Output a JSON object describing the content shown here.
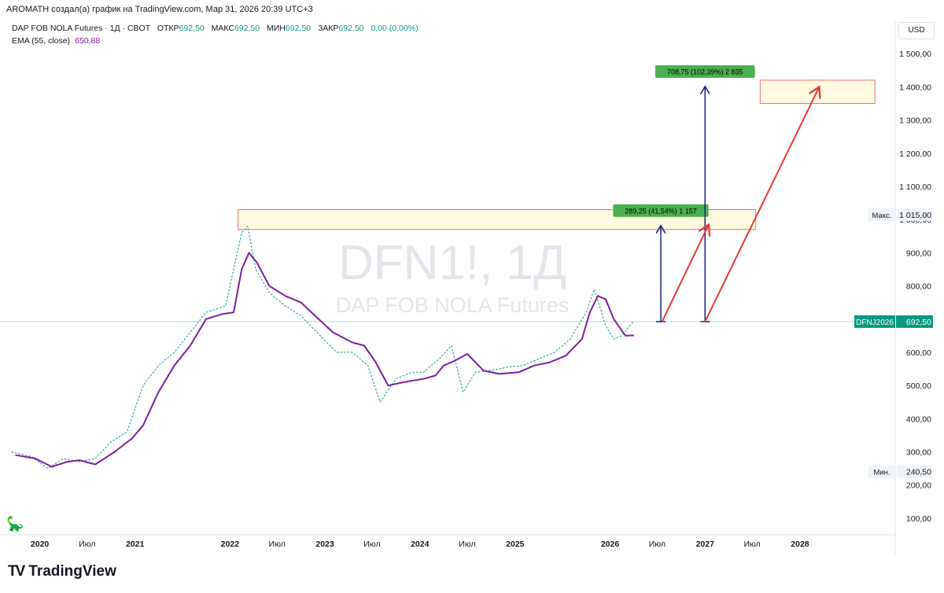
{
  "header": {
    "author_line": "AROMATH создал(а) график на TradingView.com, Мар 31, 2026 20:39 UTC+3",
    "symbol_line": "DAP FOB NOLA Futures · 1Д · CBOT",
    "ohlc": [
      {
        "label": "ОТКР",
        "value": "692,50"
      },
      {
        "label": "МАКС",
        "value": "692,50"
      },
      {
        "label": "МИН",
        "value": "692,50"
      },
      {
        "label": "ЗАКР",
        "value": "692,50"
      }
    ],
    "change": "0,00 (0,00%)",
    "ema_label": "EMA (55, close)",
    "ema_value": "650,88",
    "currency": "USD"
  },
  "watermark": {
    "ticker": "DFN1!, 1Д",
    "name": "DAP FOB NOLA Futures"
  },
  "brand": {
    "logo": "TV",
    "name": "TradingView"
  },
  "chart_data": {
    "type": "line",
    "ylim": [
      50,
      1600
    ],
    "y_ticks": [
      100,
      200,
      300,
      400,
      500,
      600,
      700,
      800,
      900,
      1000,
      1100,
      1200,
      1300,
      1400,
      1500
    ],
    "y_tick_labels": [
      "100,00",
      "200,00",
      "300,00",
      "400,00",
      "500,00",
      "600,00",
      "700,00",
      "800,00",
      "900,00",
      "1 000,00",
      "1 100,00",
      "1 200,00",
      "1 300,00",
      "1 400,00",
      "1 500,00"
    ],
    "x_range": [
      "2019-08-01",
      "2029-01-01"
    ],
    "x_ticks": [
      {
        "date": "2020-01-01",
        "label": "2020"
      },
      {
        "date": "2020-07-01",
        "label": "Июл"
      },
      {
        "date": "2021-01-01",
        "label": "2021"
      },
      {
        "date": "2022-01-01",
        "label": "2022"
      },
      {
        "date": "2022-07-01",
        "label": "Июл"
      },
      {
        "date": "2023-01-01",
        "label": "2023"
      },
      {
        "date": "2023-07-01",
        "label": "Июл"
      },
      {
        "date": "2024-01-01",
        "label": "2024"
      },
      {
        "date": "2024-07-01",
        "label": "Июл"
      },
      {
        "date": "2025-01-01",
        "label": "2025"
      },
      {
        "date": "2026-01-01",
        "label": "2026"
      },
      {
        "date": "2026-07-01",
        "label": "Июл"
      },
      {
        "date": "2027-01-01",
        "label": "2027"
      },
      {
        "date": "2027-07-01",
        "label": "Июл"
      },
      {
        "date": "2028-01-01",
        "label": "2028"
      }
    ],
    "series": [
      {
        "name": "EMA (55, close)",
        "color": "#7b1fa2",
        "x": [
          "2019-10-01",
          "2019-12-15",
          "2020-02-15",
          "2020-04-15",
          "2020-06-01",
          "2020-08-01",
          "2020-10-15",
          "2020-12-20",
          "2021-02-01",
          "2021-04-01",
          "2021-06-01",
          "2021-08-01",
          "2021-10-01",
          "2021-12-01",
          "2022-01-15",
          "2022-02-15",
          "2022-03-15",
          "2022-04-15",
          "2022-06-01",
          "2022-08-01",
          "2022-10-01",
          "2022-12-01",
          "2023-02-01",
          "2023-04-15",
          "2023-06-01",
          "2023-07-15",
          "2023-09-01",
          "2023-11-01",
          "2024-01-15",
          "2024-03-01",
          "2024-04-01",
          "2024-05-15",
          "2024-07-01",
          "2024-09-01",
          "2024-11-01",
          "2025-01-15",
          "2025-03-15",
          "2025-05-15",
          "2025-07-15",
          "2025-09-15",
          "2025-10-15",
          "2025-11-15",
          "2025-12-15",
          "2026-01-15",
          "2026-03-01",
          "2026-03-31"
        ],
        "values": [
          290,
          280,
          255,
          270,
          275,
          262,
          300,
          340,
          380,
          480,
          560,
          620,
          700,
          715,
          720,
          850,
          900,
          870,
          800,
          770,
          750,
          705,
          660,
          630,
          620,
          570,
          500,
          510,
          520,
          530,
          560,
          575,
          595,
          545,
          535,
          540,
          560,
          570,
          590,
          640,
          720,
          770,
          760,
          700,
          650,
          650.88
        ]
      },
      {
        "name": "",
        "color": "#26a69a",
        "x": [
          "2019-09-15",
          "2019-12-01",
          "2020-02-01",
          "2020-04-01",
          "2020-06-01",
          "2020-08-01",
          "2020-10-01",
          "2020-12-01",
          "2021-02-01",
          "2021-04-01",
          "2021-06-01",
          "2021-08-01",
          "2021-10-01",
          "2021-12-15",
          "2022-02-15",
          "2022-03-10",
          "2022-04-10",
          "2022-06-01",
          "2022-08-01",
          "2022-10-01",
          "2022-12-01",
          "2023-02-15",
          "2023-04-15",
          "2023-06-15",
          "2023-08-01",
          "2023-10-01",
          "2023-12-01",
          "2024-01-15",
          "2024-03-15",
          "2024-05-01",
          "2024-06-15",
          "2024-08-01",
          "2024-10-01",
          "2024-12-01",
          "2025-02-01",
          "2025-04-01",
          "2025-06-01",
          "2025-08-01",
          "2025-10-01",
          "2025-11-01",
          "2025-12-15",
          "2026-01-15",
          "2026-02-15",
          "2026-03-31"
        ],
        "values": [
          300,
          285,
          250,
          280,
          270,
          280,
          330,
          360,
          500,
          560,
          600,
          660,
          720,
          740,
          960,
          980,
          850,
          780,
          740,
          710,
          660,
          600,
          600,
          560,
          450,
          520,
          540,
          540,
          580,
          620,
          480,
          540,
          545,
          555,
          560,
          580,
          600,
          640,
          720,
          790,
          680,
          640,
          650,
          692.5
        ]
      }
    ],
    "last_price": {
      "label": "DFNJ2026",
      "value": 692.5,
      "text": "692,50"
    },
    "max_label": {
      "label": "Макс.",
      "value": 1015,
      "text": "1 015,00"
    },
    "min_label": {
      "label": "Мин.",
      "value": 240.5,
      "text": "240,50"
    },
    "annotations": {
      "zones": [
        {
          "x0": "2022-02-01",
          "x1": "2027-07-15",
          "y0": 970,
          "y1": 1030
        },
        {
          "x0": "2027-08-01",
          "x1": "2028-10-15",
          "y0": 1350,
          "y1": 1420
        }
      ],
      "measures": [
        {
          "x": "2026-07-15",
          "y0": 692.5,
          "y1": 982,
          "label": "289,25 (41,54%) 1 157"
        },
        {
          "x": "2027-01-01",
          "y0": 692.5,
          "y1": 1401,
          "label": "708,75 (102,39%) 2 835"
        }
      ],
      "arrows": [
        {
          "x0": "2026-07-20",
          "y0": 692.5,
          "x1": "2027-01-15",
          "y1": 985
        },
        {
          "x0": "2027-01-01",
          "y0": 692.5,
          "x1": "2028-03-15",
          "y1": 1400
        }
      ]
    }
  }
}
